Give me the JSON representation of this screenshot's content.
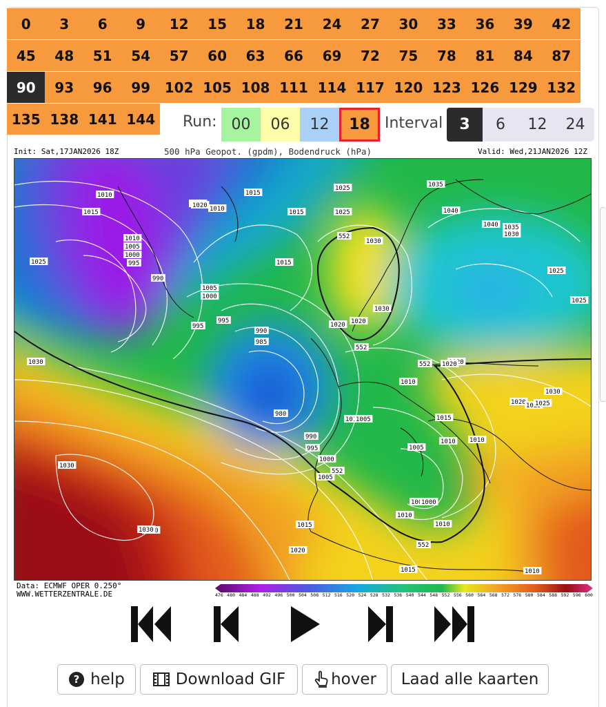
{
  "forecast_hours": {
    "rows": [
      [
        "0",
        "3",
        "6",
        "9",
        "12",
        "15",
        "18",
        "21",
        "24",
        "27",
        "30",
        "33",
        "36",
        "39",
        "42"
      ],
      [
        "45",
        "48",
        "51",
        "54",
        "57",
        "60",
        "63",
        "66",
        "69",
        "72",
        "75",
        "78",
        "81",
        "84",
        "87"
      ],
      [
        "90",
        "93",
        "96",
        "99",
        "102",
        "105",
        "108",
        "111",
        "114",
        "117",
        "120",
        "123",
        "126",
        "129",
        "132"
      ],
      [
        "135",
        "138",
        "141",
        "144"
      ]
    ],
    "selected": "90"
  },
  "run": {
    "label": "Run:",
    "options": [
      "00",
      "06",
      "12",
      "18"
    ],
    "colors": [
      "#a6f3a0",
      "#fdfdaa",
      "#a9d1f7",
      "#f79a3e"
    ],
    "selected": "18",
    "selected_border": "#e8202a"
  },
  "interval": {
    "label": "Interval",
    "options": [
      "3",
      "6",
      "12",
      "24"
    ],
    "selected": "3",
    "bg": "#e6e6f3"
  },
  "map": {
    "init": "Init: Sat,17JAN2026 18Z",
    "title": "500 hPa Geopot. (gpdm), Bodendruck (hPa)",
    "valid": "Valid: Wed,21JAN2026 12Z",
    "footer_line1": "Data: ECMWF OPER 0.250°",
    "footer_line2": "WWW.WETTERZENTRALE.DE",
    "colorbar_ticks": [
      "476",
      "480",
      "484",
      "488",
      "492",
      "496",
      "500",
      "504",
      "508",
      "512",
      "516",
      "520",
      "524",
      "528",
      "532",
      "536",
      "540",
      "544",
      "548",
      "552",
      "556",
      "560",
      "564",
      "568",
      "572",
      "576",
      "580",
      "584",
      "588",
      "592",
      "596",
      "600"
    ],
    "pressure_labels": [
      "1010",
      "1015",
      "1020",
      "1010",
      "1005",
      "1000",
      "995",
      "990",
      "1005",
      "1000",
      "995",
      "1015",
      "1020",
      "1015",
      "1025",
      "1010",
      "1015",
      "1020",
      "1025",
      "1030",
      "1020",
      "552",
      "1030",
      "1035",
      "1040",
      "1040",
      "1035",
      "1030",
      "1025",
      "1025",
      "1025",
      "995",
      "990",
      "985",
      "980",
      "990",
      "995",
      "1000",
      "1005",
      "1010",
      "1015",
      "1020",
      "1025",
      "1030",
      "1030",
      "1030",
      "1020",
      "1015",
      "1010",
      "1005",
      "1010",
      "1010",
      "1005",
      "1000",
      "1005",
      "1015",
      "1020",
      "1015",
      "1010",
      "1010",
      "1020",
      "552",
      "552",
      "552",
      "552",
      "1030",
      "1030",
      "1025",
      "1020"
    ]
  },
  "controls": {
    "first": "first-frame",
    "prev": "previous-frame",
    "play": "play",
    "next": "next-frame",
    "last": "last-frame"
  },
  "buttons": {
    "help": "help",
    "download": "Download GIF",
    "hover": "hover",
    "load_all": "Laad alle kaarten"
  },
  "colors": {
    "grid_bg": "#f79a3e",
    "active_bg": "#2b2b2b"
  }
}
